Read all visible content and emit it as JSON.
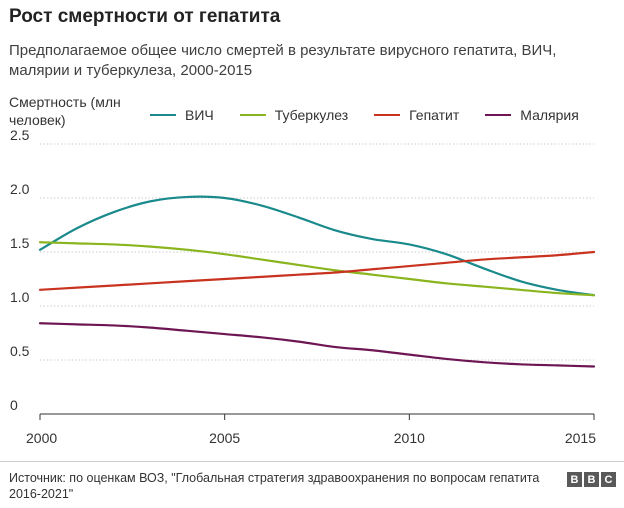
{
  "header": {
    "title": "Рост смертности от гепатита",
    "subtitle": "Предполагаемое общее число смертей в результате вирусного гепатита, ВИЧ, малярии и туберкулеза, 2000-2015"
  },
  "footer": {
    "source": "Источник: по оценкам ВОЗ, \"Глобальная стратегия здравоохранения по вопросам гепатита 2016-2021\"",
    "logo_letters": [
      "B",
      "B",
      "C"
    ]
  },
  "chart_data": {
    "type": "line",
    "title": "Рост смертности от гепатита",
    "ylabel": "Смертность (млн человек)",
    "xlabel": "",
    "xlim": [
      2000,
      2015
    ],
    "ylim": [
      0,
      2.5
    ],
    "x_ticks": [
      "2000",
      "2005",
      "2010",
      "2015"
    ],
    "y_ticks": [
      "0",
      "0.5",
      "1.0",
      "1.5",
      "2.0",
      "2.5"
    ],
    "grid": true,
    "legend_position": "top",
    "x": [
      2000,
      2001,
      2002,
      2003,
      2004,
      2005,
      2006,
      2007,
      2008,
      2009,
      2010,
      2011,
      2012,
      2013,
      2014,
      2015
    ],
    "series": [
      {
        "name": "ВИЧ",
        "color": "#1a8a8c",
        "values": [
          1.52,
          1.72,
          1.87,
          1.97,
          2.01,
          2.0,
          1.93,
          1.82,
          1.7,
          1.62,
          1.57,
          1.48,
          1.35,
          1.23,
          1.15,
          1.1
        ]
      },
      {
        "name": "Туберкулез",
        "color": "#8ab51e",
        "values": [
          1.59,
          1.58,
          1.57,
          1.55,
          1.52,
          1.48,
          1.43,
          1.38,
          1.33,
          1.29,
          1.25,
          1.21,
          1.18,
          1.15,
          1.12,
          1.1
        ]
      },
      {
        "name": "Гепатит",
        "color": "#c8321f",
        "values": [
          1.15,
          1.17,
          1.19,
          1.21,
          1.23,
          1.25,
          1.27,
          1.29,
          1.31,
          1.34,
          1.37,
          1.4,
          1.43,
          1.45,
          1.47,
          1.5
        ]
      },
      {
        "name": "Малярия",
        "color": "#6d1653",
        "values": [
          0.84,
          0.83,
          0.82,
          0.8,
          0.77,
          0.74,
          0.71,
          0.67,
          0.62,
          0.59,
          0.55,
          0.51,
          0.48,
          0.46,
          0.45,
          0.44
        ]
      }
    ]
  }
}
